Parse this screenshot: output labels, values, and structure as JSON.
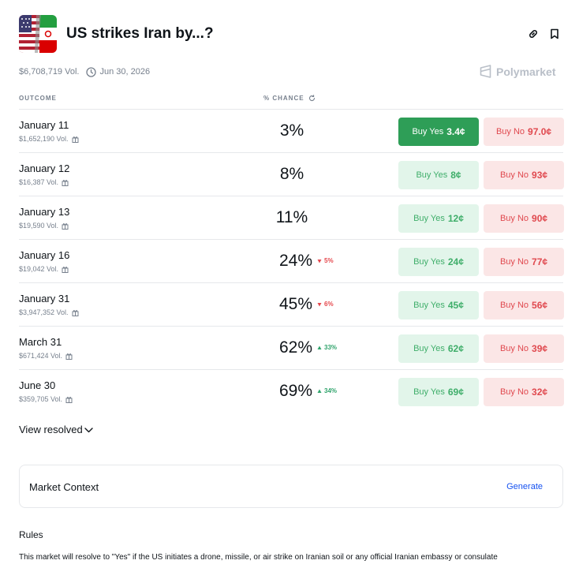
{
  "header": {
    "title": "US strikes Iran by...?",
    "thumbnail_icon": "us-iran-flags-icon",
    "link_icon": "link-icon",
    "bookmark_icon": "bookmark-icon"
  },
  "meta": {
    "volume": "$6,708,719 Vol.",
    "end_date": "Jun 30, 2026",
    "brand": "Polymarket"
  },
  "columns": {
    "outcome": "OUTCOME",
    "chance": "% CHANCE"
  },
  "outcomes": [
    {
      "name": "January 11",
      "volume": "$1,652,190 Vol.",
      "chance": "3%",
      "delta": "",
      "delta_dir": "",
      "yes_label": "Buy Yes",
      "yes_price": "3.4¢",
      "no_label": "Buy No",
      "no_price": "97.0¢",
      "yes_active": true
    },
    {
      "name": "January 12",
      "volume": "$16,387 Vol.",
      "chance": "8%",
      "delta": "",
      "delta_dir": "",
      "yes_label": "Buy Yes",
      "yes_price": "8¢",
      "no_label": "Buy No",
      "no_price": "93¢",
      "yes_active": false
    },
    {
      "name": "January 13",
      "volume": "$19,590 Vol.",
      "chance": "11%",
      "delta": "",
      "delta_dir": "",
      "yes_label": "Buy Yes",
      "yes_price": "12¢",
      "no_label": "Buy No",
      "no_price": "90¢",
      "yes_active": false
    },
    {
      "name": "January 16",
      "volume": "$19,042 Vol.",
      "chance": "24%",
      "delta": "5%",
      "delta_dir": "down",
      "yes_label": "Buy Yes",
      "yes_price": "24¢",
      "no_label": "Buy No",
      "no_price": "77¢",
      "yes_active": false
    },
    {
      "name": "January 31",
      "volume": "$3,947,352 Vol.",
      "chance": "45%",
      "delta": "6%",
      "delta_dir": "down",
      "yes_label": "Buy Yes",
      "yes_price": "45¢",
      "no_label": "Buy No",
      "no_price": "56¢",
      "yes_active": false
    },
    {
      "name": "March 31",
      "volume": "$671,424 Vol.",
      "chance": "62%",
      "delta": "33%",
      "delta_dir": "up",
      "yes_label": "Buy Yes",
      "yes_price": "62¢",
      "no_label": "Buy No",
      "no_price": "39¢",
      "yes_active": false
    },
    {
      "name": "June 30",
      "volume": "$359,705 Vol.",
      "chance": "69%",
      "delta": "34%",
      "delta_dir": "up",
      "yes_label": "Buy Yes",
      "yes_price": "69¢",
      "no_label": "Buy No",
      "no_price": "32¢",
      "yes_active": false
    }
  ],
  "view_resolved": "View resolved",
  "market_context": {
    "title": "Market Context",
    "action": "Generate"
  },
  "rules": {
    "title": "Rules",
    "text": "This market will resolve to \"Yes\" if the US initiates a drone, missile, or air strike on Iranian soil or any official Iranian embassy or consulate"
  },
  "colors": {
    "yes_bg": "#e2f5ea",
    "yes_text": "#3fae6a",
    "yes_active_bg": "#2e9e57",
    "no_bg": "#fbe6e6",
    "no_text": "#e0494f",
    "link_blue": "#1652f0"
  }
}
